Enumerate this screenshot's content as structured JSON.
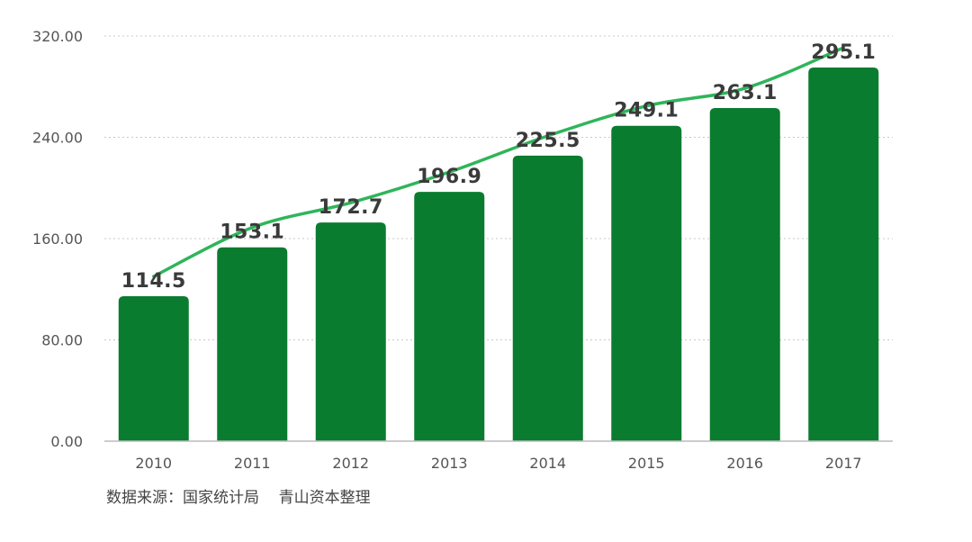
{
  "chart_data": {
    "type": "bar",
    "categories": [
      "2010",
      "2011",
      "2012",
      "2013",
      "2014",
      "2015",
      "2016",
      "2017"
    ],
    "values": [
      114.5,
      153.1,
      172.7,
      196.9,
      225.5,
      249.1,
      263.1,
      295.1
    ],
    "value_labels": [
      "114.5",
      "153.1",
      "172.7",
      "196.9",
      "225.5",
      "249.1",
      "263.1",
      "295.1"
    ],
    "y_ticks": [
      "0.00",
      "80.00",
      "160.00",
      "240.00",
      "320.00"
    ],
    "y_tick_values": [
      0,
      80,
      160,
      240,
      320
    ],
    "ylim": [
      0,
      320
    ],
    "grid": true,
    "trend_line": true,
    "title": "",
    "xlabel": "",
    "ylabel": "",
    "colors": {
      "bar": "#0a7c2f",
      "trend": "#2fb55a",
      "grid": "#c8c8c8",
      "axis": "#bbbbbb"
    }
  },
  "footer": {
    "source": "数据来源：国家统计局    青山资本整理"
  }
}
